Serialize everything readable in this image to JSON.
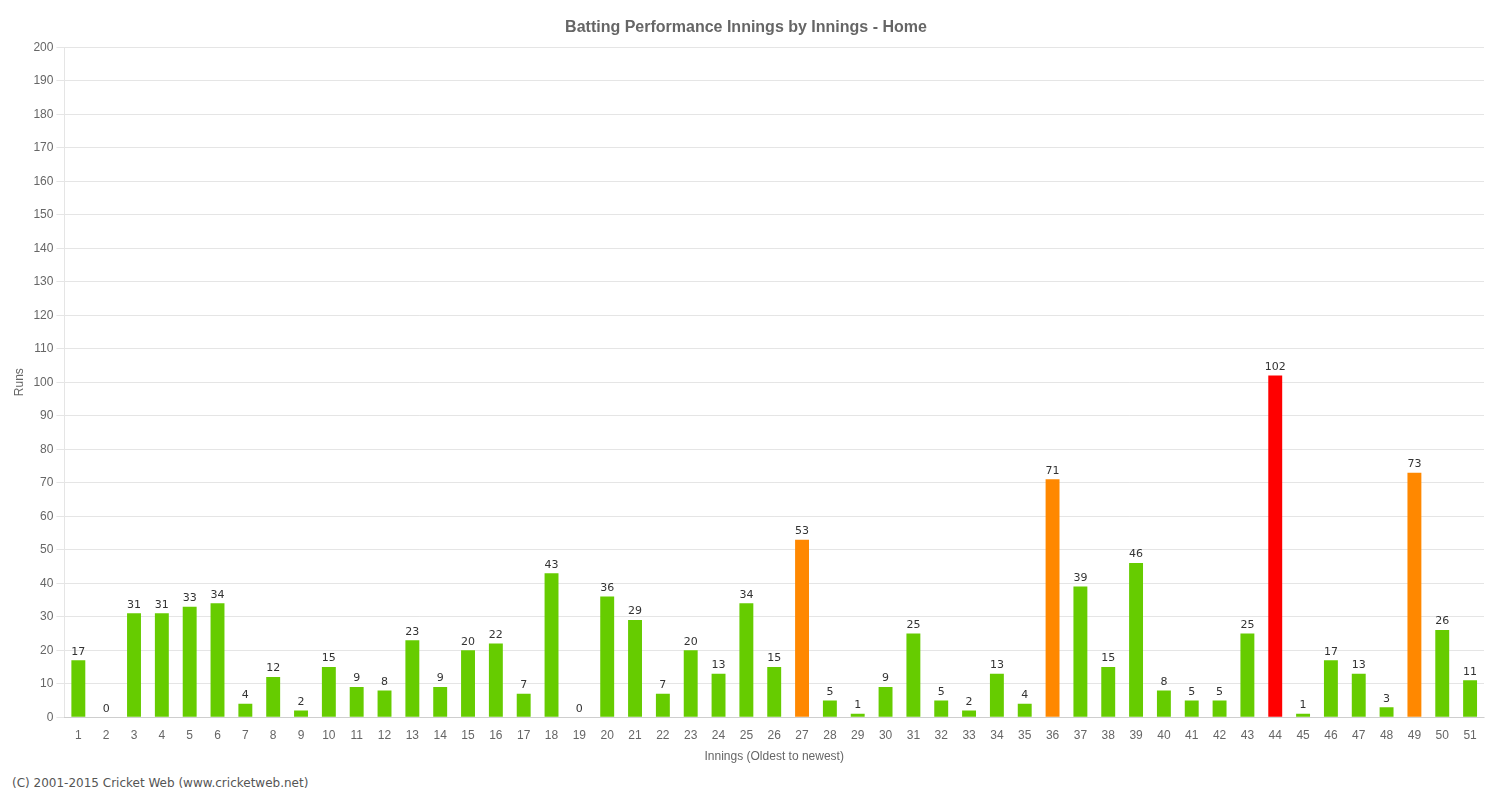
{
  "chart_data": {
    "type": "bar",
    "title": "Batting Performance Innings by Innings - Home",
    "x_label": "Innings (Oldest to newest)",
    "y_label": "Runs",
    "categories": [
      "1",
      "2",
      "3",
      "4",
      "5",
      "6",
      "7",
      "8",
      "9",
      "10",
      "11",
      "12",
      "13",
      "14",
      "15",
      "16",
      "17",
      "18",
      "19",
      "20",
      "21",
      "22",
      "23",
      "24",
      "25",
      "26",
      "27",
      "28",
      "29",
      "30",
      "31",
      "32",
      "33",
      "34",
      "35",
      "36",
      "37",
      "38",
      "39",
      "40",
      "41",
      "42",
      "43",
      "44",
      "45",
      "46",
      "47",
      "48",
      "49",
      "50",
      "51"
    ],
    "values": [
      17,
      0,
      31,
      31,
      33,
      34,
      4,
      12,
      2,
      15,
      9,
      8,
      23,
      9,
      20,
      22,
      7,
      43,
      0,
      36,
      29,
      7,
      20,
      13,
      34,
      15,
      53,
      5,
      1,
      9,
      25,
      5,
      2,
      13,
      4,
      71,
      39,
      15,
      46,
      8,
      5,
      5,
      25,
      102,
      1,
      17,
      13,
      3,
      73,
      26,
      11
    ],
    "colors": [
      "#66cc00",
      "#66cc00",
      "#66cc00",
      "#66cc00",
      "#66cc00",
      "#66cc00",
      "#66cc00",
      "#66cc00",
      "#66cc00",
      "#66cc00",
      "#66cc00",
      "#66cc00",
      "#66cc00",
      "#66cc00",
      "#66cc00",
      "#66cc00",
      "#66cc00",
      "#66cc00",
      "#66cc00",
      "#66cc00",
      "#66cc00",
      "#66cc00",
      "#66cc00",
      "#66cc00",
      "#66cc00",
      "#66cc00",
      "#ff8800",
      "#66cc00",
      "#66cc00",
      "#66cc00",
      "#66cc00",
      "#66cc00",
      "#66cc00",
      "#66cc00",
      "#66cc00",
      "#ff8800",
      "#66cc00",
      "#66cc00",
      "#66cc00",
      "#66cc00",
      "#66cc00",
      "#66cc00",
      "#66cc00",
      "#ff0000",
      "#66cc00",
      "#66cc00",
      "#66cc00",
      "#66cc00",
      "#ff8800",
      "#66cc00",
      "#66cc00"
    ],
    "ylim": [
      0,
      200
    ],
    "yticks": [
      0,
      10,
      20,
      30,
      40,
      50,
      60,
      70,
      80,
      90,
      100,
      110,
      120,
      130,
      140,
      150,
      160,
      170,
      180,
      190,
      200
    ],
    "grid": true,
    "data_labels": true,
    "annotations": [
      "(C) 2001-2015 Cricket Web (www.cricketweb.net)"
    ]
  }
}
